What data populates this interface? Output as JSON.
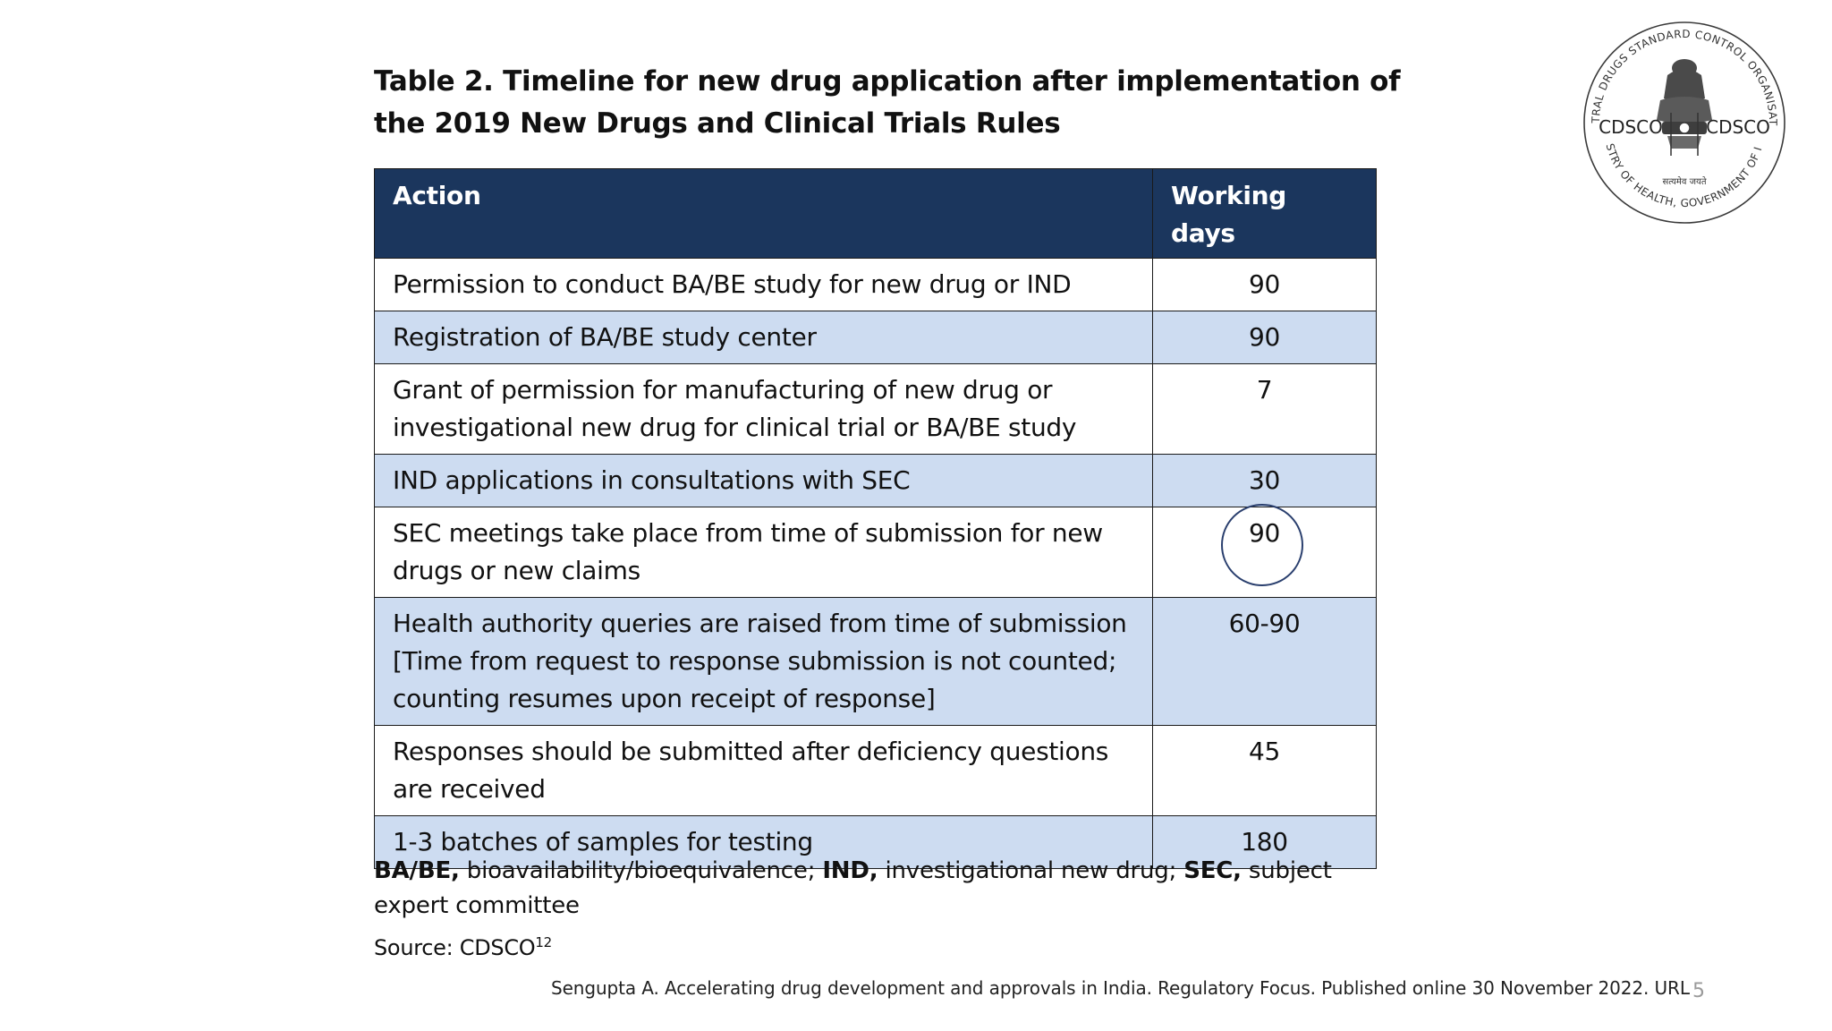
{
  "title": "Table 2. Timeline for new drug application after implementation of the 2019 New Drugs and Clinical Trials Rules",
  "table": {
    "headers": [
      "Action",
      "Working days"
    ],
    "rows": [
      {
        "action": "Permission to conduct BA/BE study for new drug or IND",
        "days": "90"
      },
      {
        "action": "Registration of BA/BE study center",
        "days": "90"
      },
      {
        "action": "Grant of permission for manufacturing of new drug or investigational new drug for clinical trial or BA/BE study",
        "days": "7"
      },
      {
        "action": "IND applications in consultations with SEC",
        "days": "30"
      },
      {
        "action": "SEC meetings take place from time of submission for new drugs or new claims",
        "days": "90"
      },
      {
        "action": "Health authority queries are raised from time of submission [Time from request to response submission is not counted; counting resumes upon receipt of response]",
        "days": "60-90"
      },
      {
        "action": "Responses should be submitted after deficiency questions are received",
        "days": "45"
      },
      {
        "action": "1-3 batches of samples for testing",
        "days": "180"
      }
    ]
  },
  "footnote": {
    "abbr1": "BA/BE,",
    "def1": " bioavailability/bioequivalence; ",
    "abbr2": "IND,",
    "def2": " investigational new drug; ",
    "abbr3": "SEC,",
    "def3": " subject expert committee"
  },
  "source": {
    "label": "Source: CDSCO",
    "ref": "12"
  },
  "citation": "Sengupta A. Accelerating drug development and approvals in India. Regulatory Focus. Published online 30 November 2022. URL",
  "page_number": "5",
  "logo": {
    "top_arc": "CENTRAL DRUGS STANDARD CONTROL ORGANISATION",
    "bottom_arc": "MINISTRY OF HEALTH, GOVERNMENT OF INDIA",
    "left_label": "CDSCO",
    "right_label": "CDSCO",
    "motto": "सत्यमेव जयते"
  },
  "colors": {
    "header_bg": "#1b365d",
    "stripe_bg": "#cddcf1",
    "circle": "#2a3f6e"
  }
}
